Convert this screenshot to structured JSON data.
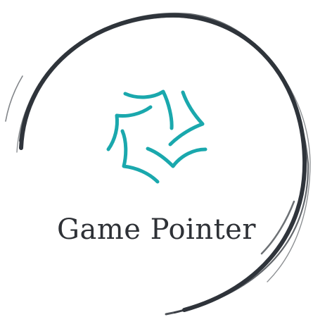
{
  "logo": {
    "brand_name": "Game Pointer",
    "ring_icon": "brush-stroke-circle-icon",
    "mark_icon": "pinwheel-star-icon",
    "colors": {
      "ring": "#2f343b",
      "mark": "#1aa8ad",
      "text": "#2e3136",
      "background": "#ffffff"
    }
  }
}
